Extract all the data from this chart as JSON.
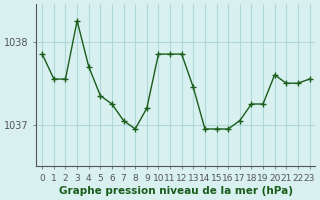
{
  "x": [
    0,
    1,
    2,
    3,
    4,
    5,
    6,
    7,
    8,
    9,
    10,
    11,
    12,
    13,
    14,
    15,
    16,
    17,
    18,
    19,
    20,
    21,
    22,
    23
  ],
  "y": [
    1037.85,
    1037.55,
    1037.55,
    1038.25,
    1037.7,
    1037.35,
    1037.25,
    1037.05,
    1036.95,
    1037.2,
    1037.85,
    1037.85,
    1037.85,
    1037.45,
    1036.95,
    1036.95,
    1036.95,
    1037.05,
    1037.25,
    1037.25,
    1037.6,
    1037.5,
    1037.5,
    1037.55
  ],
  "line_color": "#1a5c1a",
  "marker": "+",
  "bg_color": "#d8f0f0",
  "grid_color": "#b0d8d8",
  "axis_color": "#555555",
  "xlabel": "Graphe pression niveau de la mer (hPa)",
  "xlabel_color": "#1a5c1a",
  "yticks": [
    1037,
    1038
  ],
  "ylim": [
    1036.5,
    1038.45
  ],
  "xlim": [
    -0.5,
    23.5
  ],
  "label_fontsize": 7.5,
  "tick_fontsize": 7
}
